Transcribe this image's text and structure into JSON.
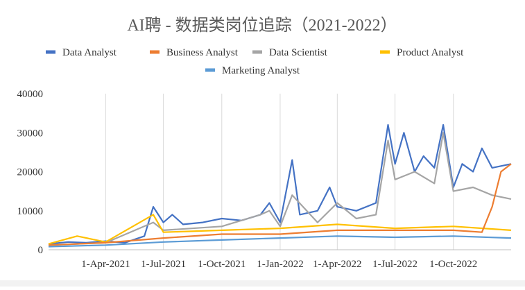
{
  "chart_data": {
    "type": "line",
    "title": "AI聘 - 数据类岗位追踪（2021-2022）",
    "xlabel": "",
    "ylabel": "",
    "ylim": [
      0,
      40000
    ],
    "yticks": [
      0,
      10000,
      20000,
      30000,
      40000
    ],
    "xlim": [
      "2021-01-01",
      "2022-12-31"
    ],
    "xtick_labels": [
      {
        "date": "2021-04-01",
        "label": "1-Apr-2021"
      },
      {
        "date": "2021-07-01",
        "label": "1-Jul-2021"
      },
      {
        "date": "2021-10-01",
        "label": "1-Oct-2021"
      },
      {
        "date": "2022-01-01",
        "label": "1-Jan-2022"
      },
      {
        "date": "2022-04-01",
        "label": "1-Apr-2022"
      },
      {
        "date": "2022-07-01",
        "label": "1-Jul-2022"
      },
      {
        "date": "2022-10-01",
        "label": "1-Oct-2022"
      }
    ],
    "grid": "vertical",
    "legend_position": "top",
    "series": [
      {
        "name": "Data Analyst",
        "color": "#4472C4",
        "x": [
          "2021-01-01",
          "2021-02-01",
          "2021-03-01",
          "2021-04-01",
          "2021-05-01",
          "2021-06-01",
          "2021-06-15",
          "2021-07-01",
          "2021-07-15",
          "2021-08-01",
          "2021-09-01",
          "2021-10-01",
          "2021-11-01",
          "2021-12-01",
          "2021-12-15",
          "2022-01-01",
          "2022-01-20",
          "2022-02-01",
          "2022-03-01",
          "2022-03-20",
          "2022-04-01",
          "2022-05-01",
          "2022-06-01",
          "2022-06-20",
          "2022-07-01",
          "2022-07-15",
          "2022-08-01",
          "2022-08-15",
          "2022-09-01",
          "2022-09-15",
          "2022-10-01",
          "2022-10-15",
          "2022-11-01",
          "2022-11-15",
          "2022-12-01",
          "2022-12-31"
        ],
        "y": [
          1500,
          2000,
          1800,
          2200,
          1800,
          3500,
          11000,
          7000,
          9000,
          6500,
          7000,
          8000,
          7500,
          9000,
          12000,
          7000,
          23000,
          9000,
          10000,
          16000,
          11000,
          10000,
          12000,
          32000,
          22000,
          30000,
          20000,
          24000,
          21000,
          32000,
          16000,
          22000,
          20000,
          26000,
          21000,
          22000
        ]
      },
      {
        "name": "Business Analyst",
        "color": "#ED7D31",
        "x": [
          "2021-01-01",
          "2021-04-01",
          "2021-07-01",
          "2021-10-01",
          "2022-01-01",
          "2022-04-01",
          "2022-07-01",
          "2022-10-01",
          "2022-11-15",
          "2022-12-01",
          "2022-12-15",
          "2022-12-31"
        ],
        "y": [
          1200,
          1800,
          3000,
          4000,
          4000,
          5000,
          5000,
          5000,
          4500,
          11000,
          20000,
          22000
        ]
      },
      {
        "name": "Data Scientist",
        "color": "#A5A5A5",
        "x": [
          "2021-01-01",
          "2021-04-01",
          "2021-06-15",
          "2021-07-01",
          "2021-10-01",
          "2021-12-01",
          "2021-12-15",
          "2022-01-01",
          "2022-01-20",
          "2022-03-01",
          "2022-04-01",
          "2022-05-01",
          "2022-06-01",
          "2022-06-20",
          "2022-07-01",
          "2022-08-01",
          "2022-09-01",
          "2022-09-15",
          "2022-10-01",
          "2022-11-01",
          "2022-12-01",
          "2022-12-31"
        ],
        "y": [
          1200,
          1800,
          7000,
          5000,
          6000,
          9000,
          10000,
          6000,
          14000,
          7000,
          12000,
          8000,
          9000,
          28000,
          18000,
          20000,
          17000,
          30000,
          15000,
          16000,
          14000,
          13000
        ]
      },
      {
        "name": "Product Analyst",
        "color": "#FFC000",
        "x": [
          "2021-01-01",
          "2021-02-15",
          "2021-04-01",
          "2021-06-15",
          "2021-07-01",
          "2021-10-01",
          "2022-01-01",
          "2022-04-01",
          "2022-07-01",
          "2022-10-01",
          "2022-12-31"
        ],
        "y": [
          1500,
          3500,
          2000,
          9000,
          4500,
          5000,
          5500,
          6500,
          5500,
          6000,
          5000
        ]
      },
      {
        "name": "Marketing Analyst",
        "color": "#5B9BD5",
        "x": [
          "2021-01-01",
          "2021-04-01",
          "2021-07-01",
          "2021-10-01",
          "2022-01-01",
          "2022-04-01",
          "2022-07-01",
          "2022-10-01",
          "2022-12-31"
        ],
        "y": [
          800,
          1200,
          2000,
          2500,
          3000,
          3500,
          3200,
          3500,
          3000
        ]
      }
    ]
  }
}
